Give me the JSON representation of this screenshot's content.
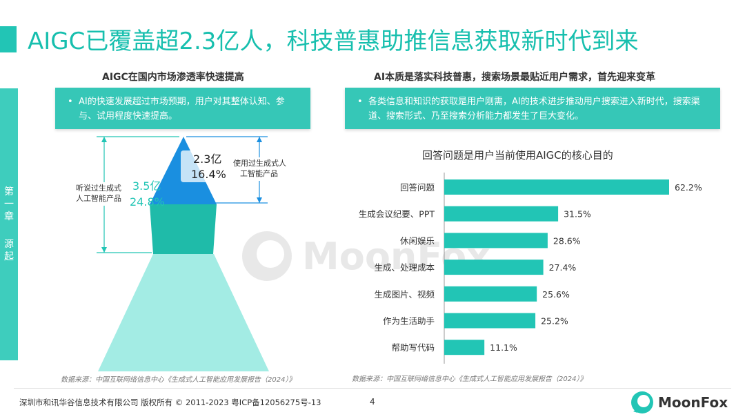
{
  "title": "AIGC已覆盖超2.3亿人，科技普惠助推信息获取新时代到来",
  "side_tab": {
    "chars": [
      "第",
      "一",
      "章",
      "源",
      "起"
    ]
  },
  "left": {
    "section_title": "AIGC在国内市场渗透率快速提高",
    "bullet": "AI的快速发展超过市场预期，用户对其整体认知、参与、试用程度快速提高。",
    "pyramid": {
      "outer_label": "听说过生成式\n人工智能产品",
      "outer_value": "3.5亿",
      "outer_pct": "24.8%",
      "inner_label": "使用过生成式人\n工智能产品",
      "inner_value": "2.3亿",
      "inner_pct": "16.4%"
    },
    "source": "数据来源：中国互联网络信息中心《生成式人工智能应用发展报告（2024）》"
  },
  "right": {
    "section_title": "AI本质是落实科技普惠，搜索场景最贴近用户需求，首先迎来变革",
    "bullet": "各类信息和知识的获取是用户刚需，AI的技术进步推动用户搜索进入新时代，搜索渠道、搜索形式、乃至搜索分析能力都发生了巨大变化。",
    "source": "数据来源：中国互联网络信息中心《生成式人工智能应用发展报告（2024）》"
  },
  "chart_data": {
    "type": "bar",
    "orientation": "horizontal",
    "title": "回答问题是用户当前使用AIGC的核心目的",
    "categories": [
      "回答问题",
      "生成会议纪要、PPT",
      "休闲娱乐",
      "生成、处理成本",
      "生成图片、视频",
      "作为生活助手",
      "帮助写代码"
    ],
    "values": [
      62.2,
      31.5,
      28.6,
      27.4,
      25.6,
      25.2,
      11.1
    ],
    "value_labels": [
      "62.2%",
      "31.5%",
      "28.6%",
      "27.4%",
      "25.6%",
      "25.2%",
      "11.1%"
    ],
    "unit": "%",
    "xlim": [
      0,
      62.2
    ],
    "grid": false,
    "bar_color": "#22c5b5"
  },
  "footer": {
    "copyright": "深圳市和讯华谷信息技术有限公司 版权所有 © 2011-2023 粤ICP备12056275号-13",
    "page": "4",
    "logo_text": "MoonFox"
  },
  "watermark": "MoonFox",
  "colors": {
    "accent": "#22c5b5",
    "pyramid_top": "#1a8fe0",
    "pyramid_mid": "#1fbba9",
    "pyramid_base": "#a3ece4"
  }
}
